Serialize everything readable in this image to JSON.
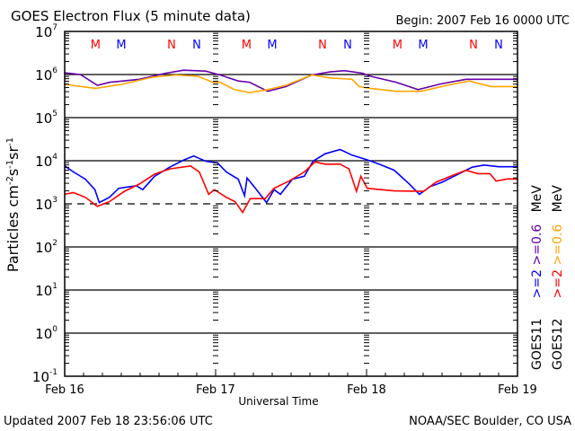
{
  "chart_data": {
    "type": "line",
    "title": "GOES Electron Flux (5 minute data)",
    "begin": "Begin: 2007 Feb 16 0000 UTC",
    "xlabel": "Universal Time",
    "ylabel_parts": [
      "Particles cm",
      "-2",
      "s",
      "-1",
      "sr",
      "-1"
    ],
    "x_ticks": [
      "Feb 16",
      "Feb 17",
      "Feb 18",
      "Feb 19"
    ],
    "x_range_hours": [
      0,
      72
    ],
    "y_scale": "log",
    "y_exponents": [
      7,
      6,
      5,
      4,
      3,
      2,
      1,
      0,
      -1
    ],
    "y_tick_base": "10",
    "threshold_log10": 3,
    "markers": [
      {
        "label": "M",
        "hour": 4.9,
        "color": "#ff0000"
      },
      {
        "label": "M",
        "hour": 9.0,
        "color": "#0000ff"
      },
      {
        "label": "N",
        "hour": 17.0,
        "color": "#ff0000"
      },
      {
        "label": "N",
        "hour": 21.0,
        "color": "#0000ff"
      }
    ],
    "legend": {
      "units": "MeV",
      "rows": [
        {
          "sat": "GOES11",
          "e2": ">=2",
          "e06": ">=0.6",
          "c2": "#0000ff",
          "c06": "#6600aa"
        },
        {
          "sat": "GOES12",
          "e2": ">=2",
          "e06": ">=0.6",
          "c2": "#ff0000",
          "c06": "#ffa500"
        }
      ]
    },
    "series": [
      {
        "name": "GOES11 >=0.6 MeV",
        "color": "#6600aa",
        "hours": [
          0,
          2.5,
          5.2,
          7.2,
          11.9,
          16,
          18.9,
          22.4,
          24.7,
          27.6,
          29.4,
          32.3,
          35.2,
          39.3,
          42.2,
          44.5,
          47.4,
          48.6,
          52.7,
          56.2,
          59.7,
          63.8,
          72
        ],
        "log10_flux": [
          6.04,
          6.0,
          5.75,
          5.82,
          5.89,
          6.03,
          6.1,
          6.08,
          5.99,
          5.85,
          5.82,
          5.61,
          5.72,
          5.99,
          6.06,
          6.09,
          6.03,
          5.96,
          5.82,
          5.65,
          5.78,
          5.89,
          5.89
        ]
      },
      {
        "name": "GOES12 >=0.6 MeV",
        "color": "#ffa500",
        "hours": [
          0,
          4.9,
          9,
          14,
          17.7,
          21.2,
          23.5,
          24.7,
          27,
          29.4,
          32.3,
          35.2,
          39.3,
          42.2,
          45.7,
          46.8,
          48.6,
          52.7,
          56.7,
          60.8,
          64.3,
          67.8,
          72
        ],
        "log10_flux": [
          5.77,
          5.68,
          5.77,
          5.94,
          5.99,
          5.96,
          5.82,
          5.82,
          5.65,
          5.58,
          5.65,
          5.75,
          5.99,
          5.92,
          5.89,
          5.72,
          5.68,
          5.61,
          5.61,
          5.75,
          5.85,
          5.72,
          5.72
        ]
      },
      {
        "name": "GOES11 >=2 MeV",
        "color": "#0000ff",
        "hours": [
          0,
          1.4,
          3.3,
          4.8,
          5.5,
          7.1,
          8.6,
          11.4,
          12.4,
          14.3,
          16.7,
          19,
          20.5,
          22.4,
          24.3,
          25.7,
          27.6,
          28.6,
          29,
          30.5,
          32.1,
          33.3,
          34.3,
          36.2,
          38.1,
          39.5,
          41.4,
          43.8,
          45.7,
          48.1,
          50,
          52.4,
          54.8,
          56.4,
          58.1,
          60,
          61.9,
          64.8,
          66.7,
          69,
          72
        ],
        "log10_flux": [
          3.88,
          3.74,
          3.57,
          3.33,
          3.03,
          3.15,
          3.36,
          3.42,
          3.33,
          3.64,
          3.85,
          4.02,
          4.11,
          3.99,
          3.95,
          3.74,
          3.57,
          3.19,
          3.6,
          3.33,
          3.03,
          3.33,
          3.22,
          3.57,
          3.64,
          3.99,
          4.16,
          4.26,
          4.13,
          4.02,
          3.92,
          3.78,
          3.46,
          3.22,
          3.4,
          3.5,
          3.64,
          3.85,
          3.9,
          3.86,
          3.86
        ]
      },
      {
        "name": "GOES12 >=2 MeV",
        "color": "#ff0000",
        "hours": [
          0,
          1.4,
          3.3,
          5.2,
          7.1,
          9.5,
          11.9,
          14.3,
          16.7,
          20,
          21.4,
          22.9,
          23.8,
          25.7,
          27.1,
          28.3,
          29.5,
          31.9,
          33.3,
          35.7,
          38.1,
          39.8,
          41.4,
          43.8,
          45.2,
          46.4,
          47.1,
          48.1,
          52.4,
          57.1,
          59,
          61.9,
          63.8,
          65.7,
          67.6,
          68.6,
          70.5,
          72
        ],
        "log10_flux": [
          3.22,
          3.26,
          3.15,
          2.94,
          3.05,
          3.29,
          3.46,
          3.69,
          3.81,
          3.88,
          3.74,
          3.22,
          3.33,
          3.15,
          3.05,
          2.8,
          3.12,
          3.12,
          3.36,
          3.53,
          3.74,
          3.97,
          3.92,
          3.92,
          3.81,
          3.29,
          3.64,
          3.36,
          3.3,
          3.29,
          3.5,
          3.67,
          3.78,
          3.7,
          3.7,
          3.53,
          3.58,
          3.57
        ]
      }
    ]
  },
  "footer": {
    "updated": "Updated 2007 Feb 18 23:56:06 UTC",
    "source": "NOAA/SEC Boulder, CO USA"
  }
}
